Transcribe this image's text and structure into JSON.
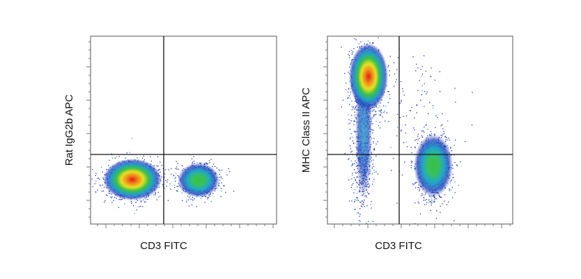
{
  "figure": {
    "panels": [
      {
        "x_label": "CD3 FITC",
        "y_label": "Rat IgG2b APC"
      },
      {
        "x_label": "CD3 FITC",
        "y_label": "MHC Class II APC"
      }
    ]
  }
}
